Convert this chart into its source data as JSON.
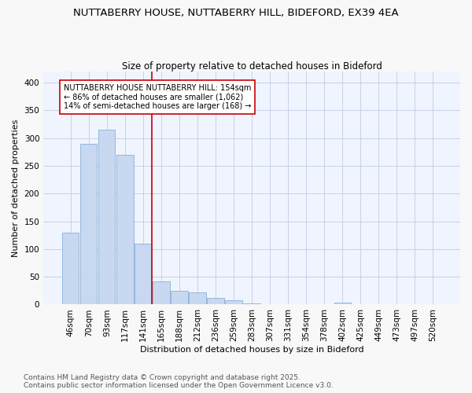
{
  "title1": "NUTTABERRY HOUSE, NUTTABERRY HILL, BIDEFORD, EX39 4EA",
  "title2": "Size of property relative to detached houses in Bideford",
  "xlabel": "Distribution of detached houses by size in Bideford",
  "ylabel": "Number of detached properties",
  "categories": [
    "46sqm",
    "70sqm",
    "93sqm",
    "117sqm",
    "141sqm",
    "165sqm",
    "188sqm",
    "212sqm",
    "236sqm",
    "259sqm",
    "283sqm",
    "307sqm",
    "331sqm",
    "354sqm",
    "378sqm",
    "402sqm",
    "425sqm",
    "449sqm",
    "473sqm",
    "497sqm",
    "520sqm"
  ],
  "values": [
    130,
    290,
    315,
    270,
    110,
    42,
    25,
    22,
    12,
    8,
    2,
    0,
    0,
    0,
    0,
    4,
    0,
    0,
    0,
    0,
    0
  ],
  "bar_color": "#c8d8f0",
  "bar_edge_color": "#8ab0d8",
  "vline_x": 4.5,
  "vline_color": "#cc0000",
  "annotation_text": "NUTTABERRY HOUSE NUTTABERRY HILL: 154sqm\n← 86% of detached houses are smaller (1,062)\n14% of semi-detached houses are larger (168) →",
  "annotation_box_color": "#ffffff",
  "annotation_box_edge_color": "#cc0000",
  "ylim": [
    0,
    420
  ],
  "yticks": [
    0,
    50,
    100,
    150,
    200,
    250,
    300,
    350,
    400
  ],
  "footer1": "Contains HM Land Registry data © Crown copyright and database right 2025.",
  "footer2": "Contains public sector information licensed under the Open Government Licence v3.0.",
  "bg_color": "#f8f8f8",
  "plot_bg_color": "#f0f4ff",
  "grid_color": "#c8d0e8",
  "title_fontsize": 9.5,
  "subtitle_fontsize": 8.5,
  "axis_label_fontsize": 8,
  "tick_fontsize": 7.5,
  "footer_fontsize": 6.5
}
